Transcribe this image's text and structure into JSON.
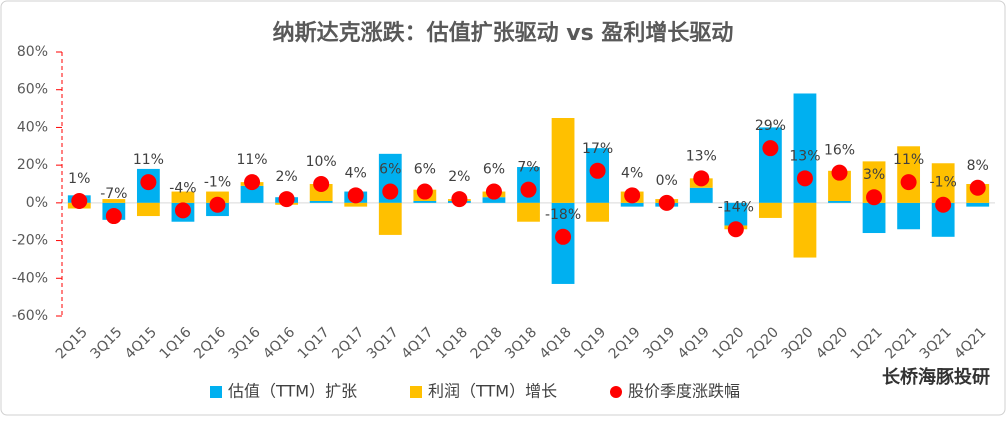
{
  "chart_data": {
    "type": "bar",
    "stacked": true,
    "title": "纳斯达克涨跌：估值扩张驱动 vs 盈利增长驱动",
    "categories": [
      "2Q15",
      "3Q15",
      "4Q15",
      "1Q16",
      "2Q16",
      "3Q16",
      "4Q16",
      "1Q17",
      "2Q17",
      "3Q17",
      "4Q17",
      "1Q18",
      "2Q18",
      "3Q18",
      "4Q18",
      "1Q19",
      "2Q19",
      "3Q19",
      "4Q19",
      "1Q20",
      "2Q20",
      "3Q20",
      "4Q20",
      "1Q21",
      "2Q21",
      "3Q21",
      "4Q21"
    ],
    "series": [
      {
        "name": "估值（TTM）扩张",
        "color": "#00b0f0",
        "type": "bar",
        "values": [
          4,
          -9,
          18,
          -10,
          -7,
          9,
          3,
          1,
          6,
          26,
          1,
          1,
          3,
          19,
          -43,
          29,
          -2,
          -2,
          8,
          -12,
          40,
          58,
          1,
          -16,
          -14,
          -18,
          -2
        ]
      },
      {
        "name": "利润（TTM）增长",
        "color": "#ffc000",
        "type": "bar",
        "values": [
          -3,
          2,
          -7,
          6,
          6,
          2,
          -1,
          9,
          -2,
          -17,
          6,
          1,
          3,
          -10,
          45,
          -10,
          6,
          2,
          5,
          -2,
          -8,
          -29,
          16,
          22,
          30,
          21,
          10
        ]
      },
      {
        "name": "股价季度涨跌幅",
        "color": "#ff0000",
        "type": "scatter",
        "values": [
          1,
          -7,
          11,
          -4,
          -1,
          11,
          2,
          10,
          4,
          6,
          6,
          2,
          6,
          7,
          -18,
          17,
          4,
          0,
          13,
          -14,
          29,
          13,
          16,
          3,
          11,
          -1,
          8
        ],
        "value_labels": [
          "1%",
          "-7%",
          "11%",
          "-4%",
          "-1%",
          "11%",
          "2%",
          "10%",
          "4%",
          "6%",
          "6%",
          "2%",
          "6%",
          "7%",
          "-18%",
          "17%",
          "4%",
          "0%",
          "13%",
          "-14%",
          "29%",
          "13%",
          "16%",
          "3%",
          "11%",
          "-1%",
          "8%"
        ]
      }
    ],
    "ylim": [
      -60,
      80
    ],
    "yticks": [
      {
        "value": -60,
        "label": "-60%"
      },
      {
        "value": -40,
        "label": "-40%"
      },
      {
        "value": -20,
        "label": "-20%"
      },
      {
        "value": 0,
        "label": "0%"
      },
      {
        "value": 20,
        "label": "20%"
      },
      {
        "value": 40,
        "label": "40%"
      },
      {
        "value": 60,
        "label": "60%"
      },
      {
        "value": 80,
        "label": "80%"
      }
    ],
    "legend": "bottom",
    "watermark": "长桥海豚投研"
  }
}
